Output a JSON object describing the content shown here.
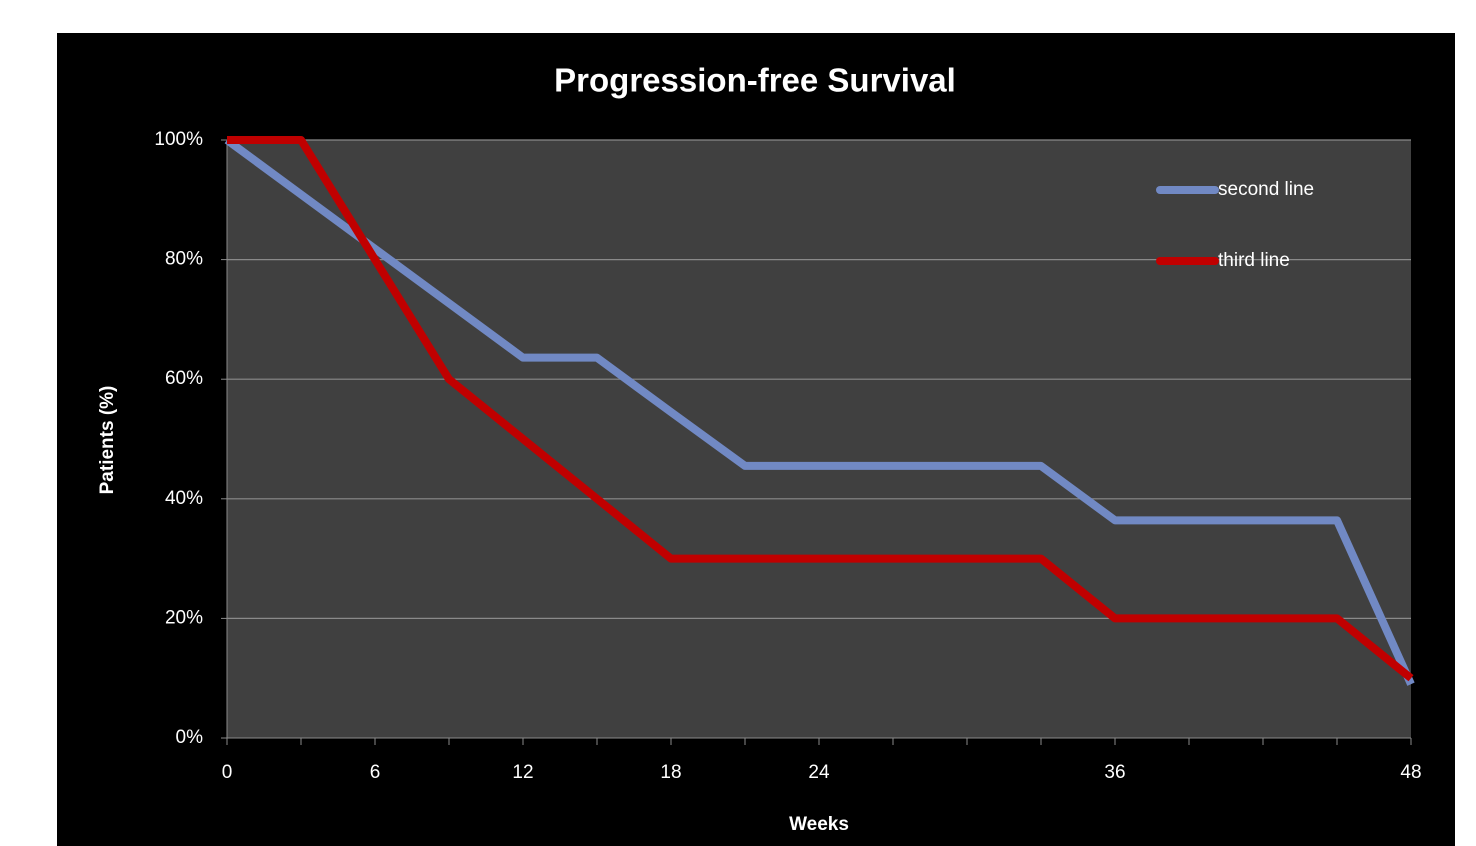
{
  "chart_data": {
    "type": "line",
    "title": "Progression-free Survival",
    "x_label": "Weeks",
    "y_label": "Patients (%)",
    "categories": [
      0,
      null,
      6,
      null,
      12,
      null,
      18,
      null,
      24,
      null,
      null,
      null,
      36,
      null,
      null,
      null,
      48
    ],
    "series": [
      {
        "name": "second line",
        "color": "#7189c4",
        "values": [
          100,
          90.9,
          81.8,
          72.7,
          63.6,
          63.6,
          54.5,
          45.5,
          45.5,
          45.5,
          45.5,
          45.5,
          36.4,
          36.4,
          36.4,
          36.4,
          9
        ]
      },
      {
        "name": "third line",
        "color": "#c00000",
        "values": [
          100,
          100,
          80,
          60,
          50,
          40,
          30,
          30,
          30,
          30,
          30,
          30,
          20,
          20,
          20,
          20,
          10
        ]
      }
    ],
    "ylim": [
      0,
      100
    ],
    "yticks": [
      {
        "value": 0,
        "label": "0%"
      },
      {
        "value": 20,
        "label": "20%"
      },
      {
        "value": 40,
        "label": "40%"
      },
      {
        "value": 60,
        "label": "60%"
      },
      {
        "value": 80,
        "label": "80%"
      },
      {
        "value": 100,
        "label": "100%"
      }
    ],
    "grid": true,
    "legend": "upper right"
  }
}
